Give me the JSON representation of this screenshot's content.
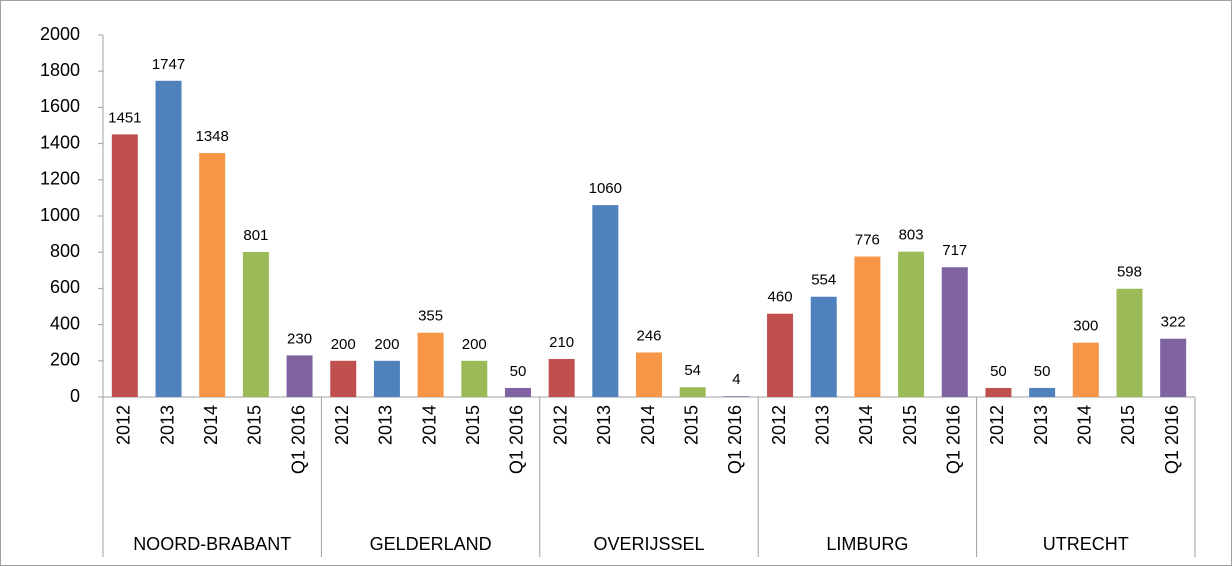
{
  "chart_data": {
    "type": "bar",
    "categories": [
      "NOORD-BRABANT",
      "GELDERLAND",
      "OVERIJSSEL",
      "LIMBURG",
      "UTRECHT"
    ],
    "series": [
      {
        "name": "2012",
        "color": "#c0504d",
        "values": [
          1451,
          200,
          210,
          460,
          50
        ]
      },
      {
        "name": "2013",
        "color": "#4f81bd",
        "values": [
          1747,
          200,
          1060,
          554,
          50
        ]
      },
      {
        "name": "2014",
        "color": "#f79646",
        "values": [
          1348,
          355,
          246,
          776,
          300
        ]
      },
      {
        "name": "2015",
        "color": "#9bbb59",
        "values": [
          801,
          200,
          54,
          803,
          598
        ]
      },
      {
        "name": "Q1 2016",
        "color": "#8064a2",
        "values": [
          230,
          50,
          4,
          717,
          322
        ]
      }
    ],
    "ylim": [
      0,
      2000
    ],
    "yticks": [
      0,
      200,
      400,
      600,
      800,
      1000,
      1200,
      1400,
      1600,
      1800,
      2000
    ]
  }
}
